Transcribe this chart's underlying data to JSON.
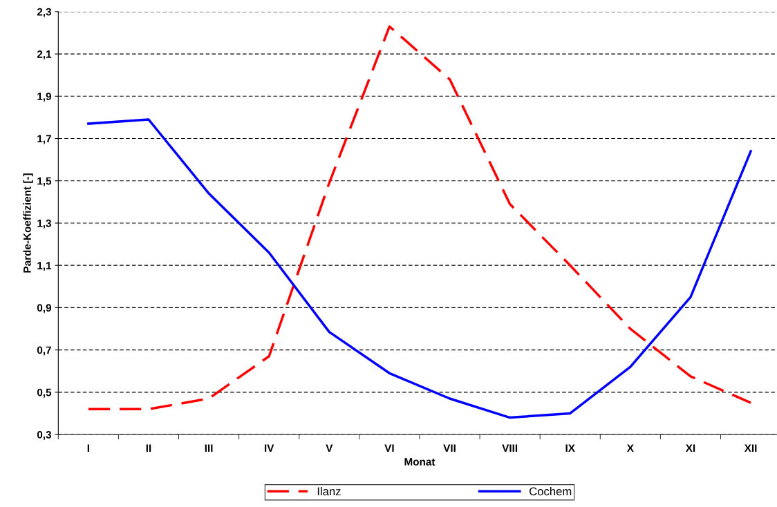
{
  "chart_data": {
    "type": "line",
    "xlabel": "Monat",
    "ylabel": "Parde-Koeffizient [-]",
    "categories": [
      "I",
      "II",
      "III",
      "IV",
      "V",
      "VI",
      "VII",
      "VIII",
      "IX",
      "X",
      "XI",
      "XII"
    ],
    "series": [
      {
        "name": "Ilanz",
        "color": "#ff0000",
        "line_style": "dashed",
        "values": [
          0.42,
          0.42,
          0.47,
          0.67,
          1.49,
          2.23,
          1.98,
          1.39,
          1.1,
          0.8,
          0.575,
          0.45
        ]
      },
      {
        "name": "Cochem",
        "color": "#0000ff",
        "line_style": "solid",
        "values": [
          1.77,
          1.79,
          1.44,
          1.16,
          0.785,
          0.59,
          0.47,
          0.38,
          0.4,
          0.62,
          0.95,
          1.64
        ]
      }
    ],
    "ylim": [
      0.3,
      2.3
    ],
    "yticks": [
      {
        "value": 0.3,
        "label": "0,3"
      },
      {
        "value": 0.5,
        "label": "0,5"
      },
      {
        "value": 0.7,
        "label": "0,7"
      },
      {
        "value": 0.9,
        "label": "0,9"
      },
      {
        "value": 1.1,
        "label": "1,1"
      },
      {
        "value": 1.3,
        "label": "1,3"
      },
      {
        "value": 1.5,
        "label": "1,5"
      },
      {
        "value": 1.7,
        "label": "1,7"
      },
      {
        "value": 1.9,
        "label": "1,9"
      },
      {
        "value": 2.1,
        "label": "2,1"
      },
      {
        "value": 2.3,
        "label": "2,3"
      }
    ],
    "grid": "y",
    "legend": "bottom",
    "marker": "none"
  }
}
